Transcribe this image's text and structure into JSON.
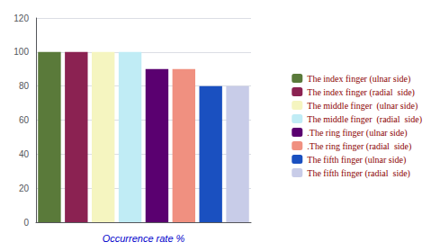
{
  "chart_data": {
    "type": "bar",
    "xlabel": "Occurrence rate %",
    "categories": [
      "The index finger (ulnar side)",
      "The index finger (radial  side)",
      "The middle finger  (ulnar side)",
      "The middle finger  (radial  side)",
      ".The ring finger (ulnar side)",
      ".The ring finger (radial  side)",
      "The fifth finger (ulnar side)",
      "The fifth finger (radial  side)"
    ],
    "values": [
      100,
      100,
      100,
      100,
      90,
      90,
      80,
      80
    ],
    "colors": [
      "#5a7a3a",
      "#8b2252",
      "#f5f5c0",
      "#c0ecf5",
      "#5a0070",
      "#f09080",
      "#1a50c0",
      "#c8cce8"
    ],
    "ylim": [
      0,
      120
    ],
    "yticks": [
      0,
      20,
      40,
      60,
      80,
      100,
      120
    ],
    "grid": true,
    "legend": "right",
    "tick_labels": "y"
  }
}
